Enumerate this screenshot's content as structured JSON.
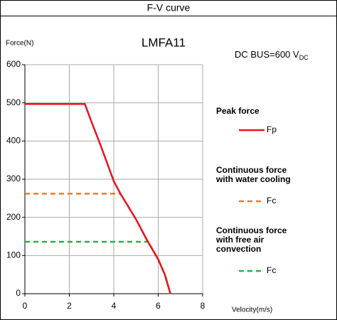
{
  "header": "F-V curve",
  "chart_data": {
    "type": "line",
    "title": "LMFA11",
    "annotation": "DC BUS=600 V",
    "annotation_subscript": "DC",
    "y_label": "Force(N)",
    "x_label": "Velocity(m/s)",
    "xlim": [
      0,
      8
    ],
    "xticks": [
      0,
      2,
      4,
      6,
      8
    ],
    "ylim": [
      0,
      600
    ],
    "yticks": [
      0,
      100,
      200,
      300,
      400,
      500,
      600
    ],
    "grid": true,
    "series": [
      {
        "name": "Fp",
        "legend_title": [
          "Peak force"
        ],
        "color": "#e8141c",
        "dashed": false,
        "x": [
          0,
          2.7,
          3,
          3.4,
          4,
          4.3,
          5,
          5.5,
          6,
          6.3,
          6.55
        ],
        "values": [
          497,
          497,
          450,
          390,
          295,
          262,
          195,
          140,
          90,
          50,
          0
        ]
      },
      {
        "name": "Fc",
        "legend_title": [
          "Continuous force",
          "with water cooling"
        ],
        "color": "#f07a20",
        "dashed": true,
        "x": [
          0,
          4.3,
          5,
          5.5,
          6,
          6.3,
          6.55
        ],
        "values": [
          262,
          262,
          195,
          140,
          90,
          50,
          0
        ]
      },
      {
        "name": "Fc",
        "legend_title": [
          "Continuous force",
          "with free air",
          "convection"
        ],
        "color": "#22b04a",
        "dashed": true,
        "x": [
          0,
          5.55,
          6,
          6.3,
          6.55
        ],
        "values": [
          136,
          136,
          90,
          50,
          0
        ]
      }
    ]
  }
}
